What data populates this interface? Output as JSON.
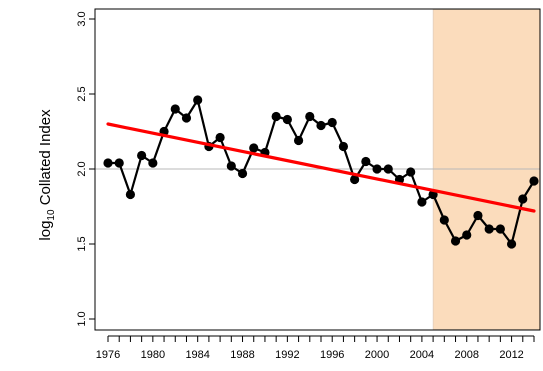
{
  "chart_data": {
    "type": "line",
    "title": "",
    "ylabel_main": "log",
    "ylabel_sub": "10",
    "ylabel_rest": " Collated Index",
    "xlim": [
      1975,
      2014
    ],
    "ylim": [
      1.0,
      3.0
    ],
    "y_ticks": [
      1.0,
      1.5,
      2.0,
      2.5,
      3.0
    ],
    "y_tick_labels": [
      "1.0",
      "1.5",
      "2.0",
      "2.5",
      "3.0"
    ],
    "x_ticks": [
      1976,
      1977,
      1978,
      1979,
      1980,
      1981,
      1982,
      1983,
      1984,
      1985,
      1986,
      1987,
      1988,
      1989,
      1990,
      1991,
      1992,
      1993,
      1994,
      1995,
      1996,
      1997,
      1998,
      1999,
      2000,
      2001,
      2002,
      2003,
      2004,
      2005,
      2006,
      2007,
      2008,
      2009,
      2010,
      2011,
      2012,
      2013,
      2014
    ],
    "x_tick_labels": [
      "1976",
      "1980",
      "1984",
      "1988",
      "1992",
      "1996",
      "2000",
      "2004",
      "2008",
      "2012"
    ],
    "reference_line_y": 2.0,
    "shaded_region": {
      "x_start": 2005,
      "x_end": 2014,
      "color": "#fbdcbc"
    },
    "series": [
      {
        "color": "#000000",
        "x": [
          1976,
          1977,
          1978,
          1979,
          1980,
          1981,
          1982,
          1983,
          1984,
          1985,
          1986,
          1987,
          1988,
          1989,
          1990,
          1991,
          1992,
          1993,
          1994,
          1995,
          1996,
          1997,
          1998,
          1999,
          2000,
          2001,
          2002,
          2003,
          2004,
          2005,
          2006,
          2007,
          2008,
          2009,
          2010,
          2011,
          2012,
          2013,
          2014
        ],
        "y": [
          2.04,
          2.04,
          1.83,
          2.09,
          2.04,
          2.25,
          2.4,
          2.34,
          2.46,
          2.15,
          2.21,
          2.02,
          1.97,
          2.14,
          2.11,
          2.35,
          2.33,
          2.19,
          2.35,
          2.29,
          2.31,
          2.15,
          1.93,
          2.05,
          2.0,
          2.0,
          1.93,
          1.98,
          1.78,
          1.83,
          1.66,
          1.52,
          1.56,
          1.69,
          1.6,
          1.6,
          1.5,
          1.8,
          1.92
        ]
      }
    ],
    "trend_line": {
      "color": "#ff0000",
      "x": [
        1976,
        2014
      ],
      "y": [
        2.3,
        1.72
      ]
    },
    "grid": false
  }
}
